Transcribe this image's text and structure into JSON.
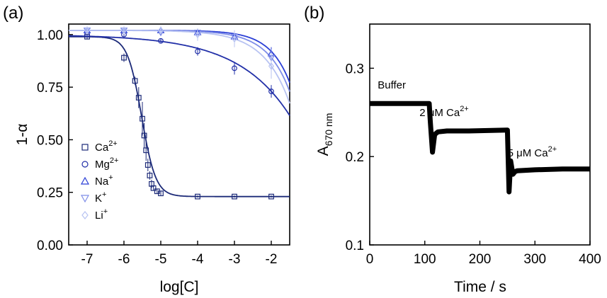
{
  "panels": {
    "a": "(a)",
    "b": "(b)"
  },
  "colors": {
    "ca": "#1c2a78",
    "mg": "#2230a8",
    "na": "#2b3fd6",
    "k": "#7f8ee8",
    "li": "#b8c3f2",
    "step": "#000000",
    "axis": "#000000"
  },
  "chart_data": [
    {
      "type": "scatter",
      "panel": "(a)",
      "xlabel": "log[C]",
      "ylabel": "1-α",
      "xlim": [
        -7.5,
        -1.5
      ],
      "ylim": [
        0.0,
        1.05
      ],
      "xticks": [
        -7,
        -6,
        -5,
        -4,
        -3,
        -2
      ],
      "xtick_labels": [
        "-7",
        "-6",
        "-5",
        "-4",
        "-3",
        "-2"
      ],
      "yticks": [
        0.0,
        0.25,
        0.5,
        0.75,
        1.0
      ],
      "ytick_labels": [
        "0.00",
        "0.25",
        "0.50",
        "0.75",
        "1.00"
      ],
      "legend_position": "bottom-left",
      "series": [
        {
          "key": "ca",
          "name_main": "Ca",
          "name_sup": "2+",
          "marker": "square",
          "x": [
            -7,
            -6,
            -5.7,
            -5.6,
            -5.5,
            -5.45,
            -5.4,
            -5.35,
            -5.3,
            -5.25,
            -5.2,
            -5.1,
            -5,
            -4,
            -3,
            -2
          ],
          "y": [
            0.99,
            0.89,
            0.78,
            0.7,
            0.6,
            0.52,
            0.45,
            0.38,
            0.33,
            0.29,
            0.27,
            0.255,
            0.245,
            0.23,
            0.23,
            0.23
          ],
          "err": [
            0.01,
            0.02,
            0.02,
            0.05,
            0.08,
            0.06,
            0.05,
            0.03,
            0.02,
            0.02,
            0.01,
            0.01,
            0.01,
            0.005,
            0.005,
            0.005
          ],
          "fit": {
            "model": "sigmoid",
            "top": 0.99,
            "bottom": 0.23,
            "x0": -5.52,
            "k": 5.2
          }
        },
        {
          "key": "mg",
          "name_main": "Mg",
          "name_sup": "2+",
          "marker": "circle",
          "x": [
            -7,
            -6,
            -5,
            -4,
            -3,
            -2
          ],
          "y": [
            1.0,
            1.0,
            0.97,
            0.92,
            0.84,
            0.73
          ],
          "err": [
            0.01,
            0.01,
            0.01,
            0.02,
            0.03,
            0.03
          ],
          "fit": {
            "model": "decay",
            "top": 1.0,
            "x0": -2.0,
            "s": 1.41,
            "a": 0.27
          }
        },
        {
          "key": "na",
          "name_main": "Na",
          "name_sup": "+",
          "marker": "triangle-up",
          "x": [
            -7,
            -6,
            -5,
            -4,
            -3,
            -2
          ],
          "y": [
            1.02,
            1.02,
            1.02,
            1.01,
            0.99,
            0.91
          ],
          "err": [
            0.01,
            0.01,
            0.01,
            0.02,
            0.02,
            0.03
          ],
          "fit": {
            "model": "decay",
            "top": 1.02,
            "x0": -2.0,
            "s": 0.55,
            "a": 0.1
          }
        },
        {
          "key": "k",
          "name_main": "K",
          "name_sup": "+",
          "marker": "triangle-down",
          "x": [
            -7,
            -6,
            -5,
            -4,
            -3,
            -2
          ],
          "y": [
            1.02,
            1.02,
            1.01,
            1.01,
            0.99,
            0.89
          ],
          "err": [
            0.01,
            0.01,
            0.01,
            0.02,
            0.03,
            0.04
          ],
          "fit": {
            "model": "decay",
            "top": 1.02,
            "x0": -2.0,
            "s": 0.62,
            "a": 0.13
          }
        },
        {
          "key": "li",
          "name_main": "Li",
          "name_sup": "+",
          "marker": "diamond",
          "x": [
            -7,
            -6,
            -5,
            -4,
            -3,
            -2
          ],
          "y": [
            1.02,
            1.02,
            1.02,
            1.0,
            0.98,
            0.85
          ],
          "err": [
            0.01,
            0.01,
            0.01,
            0.03,
            0.04,
            0.06
          ],
          "fit": {
            "model": "decay",
            "top": 1.02,
            "x0": -2.0,
            "s": 0.7,
            "a": 0.17
          }
        }
      ]
    },
    {
      "type": "line",
      "panel": "(b)",
      "xlabel": "Time / s",
      "ylabel_main": "A",
      "ylabel_sub": "670 nm",
      "xlim": [
        0,
        400
      ],
      "ylim": [
        0.1,
        0.35
      ],
      "xticks": [
        0,
        100,
        200,
        300,
        400
      ],
      "xtick_labels": [
        "0",
        "100",
        "200",
        "300",
        "400"
      ],
      "yticks": [
        0.1,
        0.2,
        0.3
      ],
      "ytick_labels": [
        "0.1",
        "0.2",
        "0.3"
      ],
      "x": [
        0,
        108,
        110,
        114,
        118,
        124,
        140,
        180,
        250,
        253,
        256,
        260,
        264,
        268,
        300,
        350,
        400
      ],
      "y": [
        0.26,
        0.26,
        0.24,
        0.205,
        0.225,
        0.228,
        0.229,
        0.229,
        0.23,
        0.16,
        0.195,
        0.18,
        0.183,
        0.184,
        0.185,
        0.186,
        0.186
      ],
      "annotations": [
        {
          "text": "Buffer",
          "x": 40,
          "y": 0.277
        },
        {
          "text": "2 μM Ca",
          "sup": "2+",
          "x": 135,
          "y": 0.246
        },
        {
          "text": "5 μM Ca",
          "sup": "2+",
          "x": 295,
          "y": 0.2
        }
      ]
    }
  ]
}
